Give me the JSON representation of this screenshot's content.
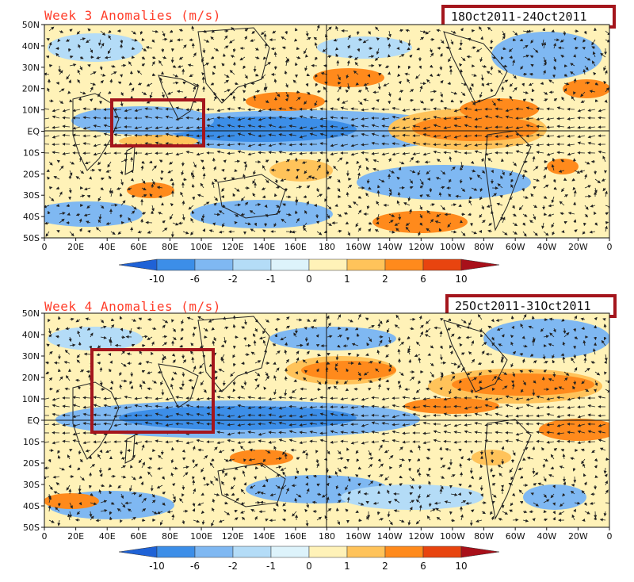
{
  "panels": [
    {
      "title": "Week 3 Anomalies (m/s)",
      "date_range": "18Oct2011-24Oct2011"
    },
    {
      "title": "Week 4 Anomalies (m/s)",
      "date_range": "25Oct2011-31Oct2011"
    }
  ],
  "axes": {
    "lat_labels": [
      "50N",
      "40N",
      "30N",
      "20N",
      "10N",
      "EQ",
      "10S",
      "20S",
      "30S",
      "40S",
      "50S"
    ],
    "lon_labels": [
      "0",
      "20E",
      "40E",
      "60E",
      "80E",
      "100E",
      "120E",
      "140E",
      "160E",
      "180",
      "160W",
      "140W",
      "120W",
      "100W",
      "80W",
      "60W",
      "40W",
      "20W",
      "0"
    ]
  },
  "colorbar": {
    "labels": [
      "-10",
      "-6",
      "-2",
      "-1",
      "0",
      "1",
      "2",
      "6",
      "10"
    ],
    "colors": [
      "#1f62d6",
      "#3c8ee8",
      "#7fb8f2",
      "#b4dcf7",
      "#ddf3fb",
      "#fff2b8",
      "#ffc35a",
      "#ff8a1c",
      "#e8440f",
      "#a8101a"
    ]
  },
  "highlight_color": "#a4151c"
}
